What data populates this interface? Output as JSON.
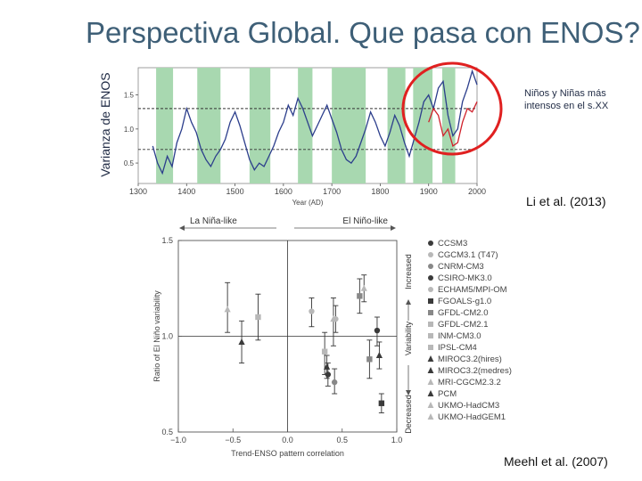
{
  "slide": {
    "title": "Perspectiva Global. Que pasa con ENOS?",
    "vertical_label": "Varianza de ENOS",
    "annotation": "Niños y Niñas más intensos en el s.XX",
    "citation_top": "Li et al. (2013)",
    "citation_bottom": "Meehl et al. (2007)"
  },
  "colors": {
    "title": "#3e5f77",
    "blue_series": "#2c3e8c",
    "red_series": "#d0212b",
    "green_bands": "#a8d8b0",
    "circle": "#e02020"
  },
  "chart_data": [
    {
      "type": "line",
      "title": "",
      "xlabel": "Year (AD)",
      "ylabel": "",
      "xlim": [
        1300,
        2000
      ],
      "ylim": [
        0.2,
        1.9
      ],
      "x_ticks": [
        1300,
        1400,
        1500,
        1600,
        1700,
        1800,
        1900,
        2000
      ],
      "y_ticks": [
        0.5,
        1.0,
        1.5
      ],
      "dashed_reference_lines": [
        1.3,
        0.7
      ],
      "green_bands": [
        [
          1337,
          1372
        ],
        [
          1422,
          1470
        ],
        [
          1530,
          1573
        ],
        [
          1630,
          1660
        ],
        [
          1700,
          1770
        ],
        [
          1815,
          1852
        ],
        [
          1868,
          1908
        ],
        [
          1928,
          1955
        ]
      ],
      "red_circle_range": [
        1880,
        2000
      ],
      "series": [
        {
          "color": "blue",
          "x": [
            1330,
            1340,
            1350,
            1360,
            1370,
            1380,
            1390,
            1400,
            1410,
            1420,
            1430,
            1440,
            1450,
            1460,
            1470,
            1480,
            1490,
            1500,
            1510,
            1520,
            1530,
            1540,
            1550,
            1560,
            1570,
            1580,
            1590,
            1600,
            1610,
            1620,
            1630,
            1640,
            1650,
            1660,
            1670,
            1680,
            1690,
            1700,
            1710,
            1720,
            1730,
            1740,
            1750,
            1760,
            1770,
            1780,
            1790,
            1800,
            1810,
            1820,
            1830,
            1840,
            1850,
            1860,
            1870,
            1880,
            1890,
            1900,
            1910,
            1920,
            1930,
            1940,
            1950,
            1960,
            1970,
            1980,
            1990,
            2000
          ],
          "values": [
            0.75,
            0.5,
            0.35,
            0.6,
            0.45,
            0.8,
            1.0,
            1.3,
            1.1,
            0.95,
            0.7,
            0.55,
            0.45,
            0.6,
            0.7,
            0.85,
            1.1,
            1.25,
            1.05,
            0.8,
            0.55,
            0.4,
            0.5,
            0.45,
            0.6,
            0.75,
            0.95,
            1.1,
            1.35,
            1.2,
            1.45,
            1.3,
            1.1,
            0.9,
            1.05,
            1.2,
            1.35,
            1.15,
            0.95,
            0.7,
            0.55,
            0.5,
            0.6,
            0.8,
            1.0,
            1.25,
            1.1,
            0.9,
            0.75,
            0.95,
            1.2,
            1.05,
            0.8,
            0.6,
            0.85,
            1.1,
            1.4,
            1.5,
            1.3,
            1.6,
            1.7,
            1.2,
            0.9,
            1.0,
            1.4,
            1.6,
            1.85,
            1.65
          ]
        },
        {
          "color": "red",
          "x": [
            1900,
            1910,
            1920,
            1930,
            1940,
            1950,
            1960,
            1970,
            1980,
            1990,
            2000
          ],
          "values": [
            1.1,
            1.3,
            1.2,
            0.9,
            1.0,
            0.75,
            0.8,
            1.1,
            1.3,
            1.25,
            1.4
          ]
        }
      ]
    },
    {
      "type": "scatter",
      "title": "",
      "top_left_label": "La Niña-like",
      "top_right_label": "El Niño-like",
      "xlabel": "Trend-ENSO pattern correlation",
      "ylabel": "Ratio of El Niño variability",
      "right_label_top": "Increased",
      "right_label_mid": "Variability",
      "right_label_bottom": "Decreased",
      "xlim": [
        -1.0,
        1.0
      ],
      "ylim": [
        0.5,
        1.5
      ],
      "x_ticks": [
        "−1.0",
        "−0.5",
        "0.0",
        "0.5",
        "1.0"
      ],
      "x_tick_values": [
        -1.0,
        -0.5,
        0.0,
        0.5,
        1.0
      ],
      "y_ticks": [
        "1.5",
        "1.0",
        "0.5"
      ],
      "y_tick_values": [
        1.5,
        1.0,
        0.5
      ],
      "legend": [
        "CCSM3",
        "CGCM3.1 (T47)",
        "CNRM-CM3",
        "CSIRO-MK3.0",
        "ECHAM5/MPI-OM",
        "FGOALS-g1.0",
        "GFDL-CM2.0",
        "GFDL-CM2.1",
        "INM-CM3.0",
        "IPSL-CM4",
        "MIROC3.2(hires)",
        "MIROC3.2(medres)",
        "MRI-CGCM2.3.2",
        "PCM",
        "UKMO-HadCM3",
        "UKMO-HadGEM1"
      ],
      "points": [
        {
          "x": -0.55,
          "y": 1.14,
          "low": 1.02,
          "high": 1.28,
          "marker": "triangle",
          "shade": "light"
        },
        {
          "x": -0.42,
          "y": 0.97,
          "low": 0.86,
          "high": 1.08,
          "marker": "triangle",
          "shade": "dark"
        },
        {
          "x": -0.27,
          "y": 1.1,
          "low": 0.98,
          "high": 1.22,
          "marker": "square",
          "shade": "light"
        },
        {
          "x": 0.22,
          "y": 1.13,
          "low": 1.05,
          "high": 1.2,
          "marker": "circle",
          "shade": "light"
        },
        {
          "x": 0.34,
          "y": 0.92,
          "low": 0.8,
          "high": 1.02,
          "marker": "square",
          "shade": "light"
        },
        {
          "x": 0.36,
          "y": 0.84,
          "low": 0.78,
          "high": 0.9,
          "marker": "triangle",
          "shade": "dark"
        },
        {
          "x": 0.37,
          "y": 0.8,
          "low": 0.74,
          "high": 0.86,
          "marker": "circle",
          "shade": "dark"
        },
        {
          "x": 0.42,
          "y": 1.09,
          "low": 0.95,
          "high": 1.2,
          "marker": "triangle",
          "shade": "light"
        },
        {
          "x": 0.43,
          "y": 0.76,
          "low": 0.7,
          "high": 0.83,
          "marker": "circle",
          "shade": "mid"
        },
        {
          "x": 0.44,
          "y": 1.09,
          "low": 1.02,
          "high": 1.16,
          "marker": "circle",
          "shade": "light"
        },
        {
          "x": 0.66,
          "y": 1.21,
          "low": 1.12,
          "high": 1.3,
          "marker": "square",
          "shade": "mid"
        },
        {
          "x": 0.7,
          "y": 1.25,
          "low": 1.18,
          "high": 1.32,
          "marker": "triangle",
          "shade": "light"
        },
        {
          "x": 0.75,
          "y": 0.88,
          "low": 0.78,
          "high": 0.98,
          "marker": "square",
          "shade": "mid"
        },
        {
          "x": 0.82,
          "y": 1.03,
          "low": 0.95,
          "high": 1.1,
          "marker": "circle",
          "shade": "dark"
        },
        {
          "x": 0.84,
          "y": 0.9,
          "low": 0.83,
          "high": 0.97,
          "marker": "triangle",
          "shade": "dark"
        },
        {
          "x": 0.86,
          "y": 0.65,
          "low": 0.6,
          "high": 0.7,
          "marker": "square",
          "shade": "dark"
        }
      ]
    }
  ]
}
